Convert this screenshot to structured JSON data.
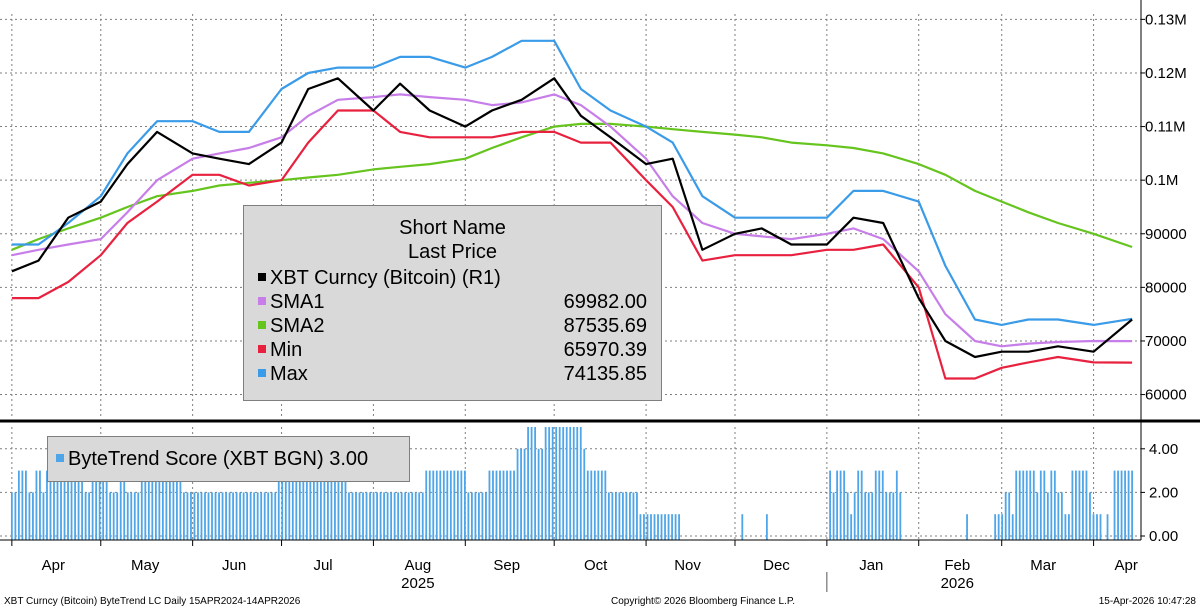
{
  "chart_data": [
    {
      "type": "line",
      "title": "",
      "y_axis": {
        "side": "right",
        "ylim": [
          56000,
          131000
        ],
        "ticks": [
          {
            "v": 60000,
            "label": "60000"
          },
          {
            "v": 70000,
            "label": "70000"
          },
          {
            "v": 80000,
            "label": "80000"
          },
          {
            "v": 90000,
            "label": "90000"
          },
          {
            "v": 100000,
            "label": "0.1M"
          },
          {
            "v": 110000,
            "label": "0.11M"
          },
          {
            "v": 120000,
            "label": "0.12M"
          },
          {
            "v": 130000,
            "label": "0.13M"
          }
        ]
      },
      "grid": true,
      "legend": {
        "placement": "center-left",
        "header": [
          "Short Name",
          "Last Price"
        ],
        "entries": [
          {
            "name": "XBT Curncy (Bitcoin)  (R1)",
            "value": "",
            "color": "#000000"
          },
          {
            "name": "SMA1",
            "value": "69982.00",
            "color": "#c77ee8"
          },
          {
            "name": "SMA2",
            "value": "87535.69",
            "color": "#66c41e"
          },
          {
            "name": "Min",
            "value": "65970.39",
            "color": "#e8213f"
          },
          {
            "name": "Max",
            "value": "74135.85",
            "color": "#3a9be8"
          }
        ]
      },
      "x": [
        "2025-04-01",
        "2025-04-10",
        "2025-04-20",
        "2025-05-01",
        "2025-05-10",
        "2025-05-20",
        "2025-06-01",
        "2025-06-10",
        "2025-06-20",
        "2025-07-01",
        "2025-07-10",
        "2025-07-20",
        "2025-08-01",
        "2025-08-10",
        "2025-08-20",
        "2025-09-01",
        "2025-09-10",
        "2025-09-20",
        "2025-10-01",
        "2025-10-10",
        "2025-10-20",
        "2025-11-01",
        "2025-11-10",
        "2025-11-20",
        "2025-12-01",
        "2025-12-10",
        "2025-12-20",
        "2026-01-01",
        "2026-01-10",
        "2026-01-20",
        "2026-02-01",
        "2026-02-10",
        "2026-02-20",
        "2026-03-01",
        "2026-03-10",
        "2026-03-20",
        "2026-04-01",
        "2026-04-14"
      ],
      "series": [
        {
          "name": "XBT Curncy (Bitcoin)  (R1)",
          "color": "#000000",
          "values": [
            83000,
            85000,
            93000,
            96000,
            103000,
            109000,
            105000,
            104000,
            103000,
            107000,
            117000,
            119000,
            113000,
            118000,
            113000,
            110000,
            113000,
            115000,
            119000,
            112000,
            108000,
            103000,
            104000,
            87000,
            90000,
            91000,
            88000,
            88000,
            93000,
            92000,
            78000,
            70000,
            67000,
            68000,
            68000,
            69000,
            68000,
            74000
          ]
        },
        {
          "name": "SMA1",
          "color": "#c77ee8",
          "values": [
            86000,
            87000,
            88000,
            89000,
            94000,
            100000,
            104000,
            105000,
            106000,
            108000,
            112000,
            115000,
            115500,
            116000,
            115500,
            115000,
            114000,
            114500,
            116000,
            114000,
            110000,
            104000,
            97000,
            92000,
            90000,
            89500,
            89000,
            90000,
            91000,
            89000,
            83000,
            75000,
            70000,
            69000,
            69500,
            69800,
            70000,
            69982
          ]
        },
        {
          "name": "SMA2",
          "color": "#66c41e",
          "values": [
            87000,
            89000,
            91000,
            93000,
            95000,
            97000,
            98000,
            99000,
            99500,
            100000,
            100500,
            101000,
            102000,
            102500,
            103000,
            104000,
            106000,
            108000,
            110000,
            110500,
            110500,
            110000,
            109500,
            109000,
            108500,
            108000,
            107000,
            106500,
            106000,
            105000,
            103000,
            101000,
            98000,
            96000,
            94000,
            92000,
            90000,
            87536
          ]
        },
        {
          "name": "Min",
          "color": "#e8213f",
          "values": [
            78000,
            78000,
            81000,
            86000,
            92000,
            96000,
            101000,
            101000,
            99000,
            100000,
            107000,
            113000,
            113000,
            109000,
            108000,
            108000,
            108000,
            109000,
            109000,
            107000,
            107000,
            100000,
            95000,
            85000,
            86000,
            86000,
            86000,
            87000,
            87000,
            88000,
            80000,
            63000,
            63000,
            65000,
            66000,
            67000,
            66000,
            65970
          ]
        },
        {
          "name": "Max",
          "color": "#3a9be8",
          "values": [
            88000,
            88000,
            92000,
            97000,
            105000,
            111000,
            111000,
            109000,
            109000,
            117000,
            120000,
            121000,
            121000,
            123000,
            123000,
            121000,
            123000,
            126000,
            126000,
            117000,
            113000,
            110000,
            107000,
            97000,
            93000,
            93000,
            93000,
            93000,
            98000,
            98000,
            96000,
            84000,
            74000,
            73000,
            74000,
            74000,
            73000,
            74136
          ]
        }
      ]
    },
    {
      "type": "bar",
      "title": "",
      "legend": {
        "placement": "top-left",
        "entries": [
          {
            "name": "ByteTrend Score (XBT BGN) 3.00",
            "color": "#4ea5e8"
          }
        ]
      },
      "y_axis": {
        "side": "right",
        "ylim": [
          0,
          5
        ],
        "ticks": [
          {
            "v": 0,
            "label": "0.00"
          },
          {
            "v": 2,
            "label": "2.00"
          },
          {
            "v": 4,
            "label": "4.00"
          }
        ]
      },
      "x_start": "2025-04-01",
      "x_end": "2026-04-14",
      "values": [
        2,
        2,
        3,
        3,
        3,
        2,
        2,
        3,
        3,
        2,
        3,
        3,
        3,
        3,
        4,
        4,
        3,
        3,
        3,
        3,
        3,
        2,
        2,
        3,
        3,
        3,
        3,
        3,
        2,
        2,
        2,
        3,
        3,
        2,
        2,
        2,
        2,
        3,
        3,
        3,
        3,
        4,
        3,
        3,
        3,
        3,
        3,
        3,
        3,
        2,
        2,
        2,
        2,
        2,
        2,
        2,
        2,
        2,
        2,
        2,
        2,
        2,
        2,
        2,
        2,
        2,
        2,
        2,
        2,
        2,
        2,
        2,
        2,
        2,
        2,
        2,
        3,
        3,
        3,
        3,
        3,
        3,
        3,
        3,
        3,
        3,
        3,
        3,
        3,
        3,
        3,
        3,
        3,
        3,
        3,
        3,
        2,
        2,
        2,
        2,
        2,
        2,
        2,
        2,
        2,
        2,
        2,
        2,
        2,
        2,
        2,
        2,
        2,
        2,
        2,
        2,
        2,
        2,
        3,
        3,
        3,
        3,
        3,
        3,
        3,
        3,
        3,
        3,
        3,
        3,
        2,
        2,
        2,
        2,
        2,
        2,
        3,
        3,
        3,
        3,
        3,
        3,
        3,
        3,
        4,
        4,
        4,
        5,
        5,
        5,
        4,
        4,
        5,
        5,
        5,
        5,
        5,
        5,
        5,
        5,
        5,
        5,
        5,
        4,
        3,
        3,
        3,
        3,
        3,
        3,
        2,
        2,
        2,
        2,
        2,
        2,
        2,
        2,
        2,
        1,
        1,
        1,
        1,
        1,
        1,
        1,
        1,
        1,
        1,
        1,
        1,
        0,
        0,
        0,
        0,
        0,
        0,
        0,
        0,
        0,
        0,
        0,
        0,
        0,
        0,
        0,
        0,
        0,
        1,
        0,
        0,
        0,
        0,
        0,
        0,
        1,
        0,
        0,
        0,
        0,
        0,
        0,
        0,
        0,
        0,
        0,
        0,
        0,
        0,
        0,
        0,
        0,
        0,
        3,
        2,
        3,
        3,
        3,
        2,
        1,
        2,
        3,
        3,
        2,
        2,
        2,
        3,
        3,
        3,
        2,
        2,
        2,
        3,
        2,
        0,
        0,
        0,
        0,
        0,
        0,
        0,
        0,
        0,
        0,
        0,
        0,
        0,
        0,
        0,
        0,
        0,
        0,
        1,
        0,
        0,
        0,
        0,
        0,
        0,
        0,
        1,
        1,
        1,
        2,
        2,
        1,
        3,
        3,
        3,
        3,
        3,
        3,
        2,
        3,
        3,
        2,
        3,
        3,
        2,
        2,
        1,
        1,
        3,
        3,
        3,
        3,
        3,
        2,
        1,
        1,
        1,
        0,
        1,
        0,
        3,
        3,
        3,
        3,
        3,
        3
      ]
    }
  ],
  "x_axis": {
    "months": [
      {
        "label": "Apr",
        "date": "2025-04-15"
      },
      {
        "label": "May",
        "date": "2025-05-16"
      },
      {
        "label": "Jun",
        "date": "2025-06-15"
      },
      {
        "label": "Jul",
        "date": "2025-07-15"
      },
      {
        "label": "Aug",
        "date": "2025-08-16"
      },
      {
        "label": "Sep",
        "date": "2025-09-15"
      },
      {
        "label": "Oct",
        "date": "2025-10-15"
      },
      {
        "label": "Nov",
        "date": "2025-11-15"
      },
      {
        "label": "Dec",
        "date": "2025-12-15"
      },
      {
        "label": "Jan",
        "date": "2026-01-16"
      },
      {
        "label": "Feb",
        "date": "2026-02-14"
      },
      {
        "label": "Mar",
        "date": "2026-03-15"
      },
      {
        "label": "Apr",
        "date": "2026-04-12"
      }
    ],
    "years": [
      {
        "label": "2025",
        "date": "2025-08-16"
      },
      {
        "label": "2026",
        "date": "2026-02-14"
      }
    ]
  },
  "footer": {
    "left": "XBT Curncy (Bitcoin) ByteTrend LC Daily 15APR2024-14APR2026",
    "center": "Copyright© 2026 Bloomberg Finance L.P.",
    "right": "15-Apr-2026 10:47:28"
  },
  "colors": {
    "grid": "#7f7f7f",
    "axis": "#000000",
    "panel_bg": "#d9d9d9"
  }
}
